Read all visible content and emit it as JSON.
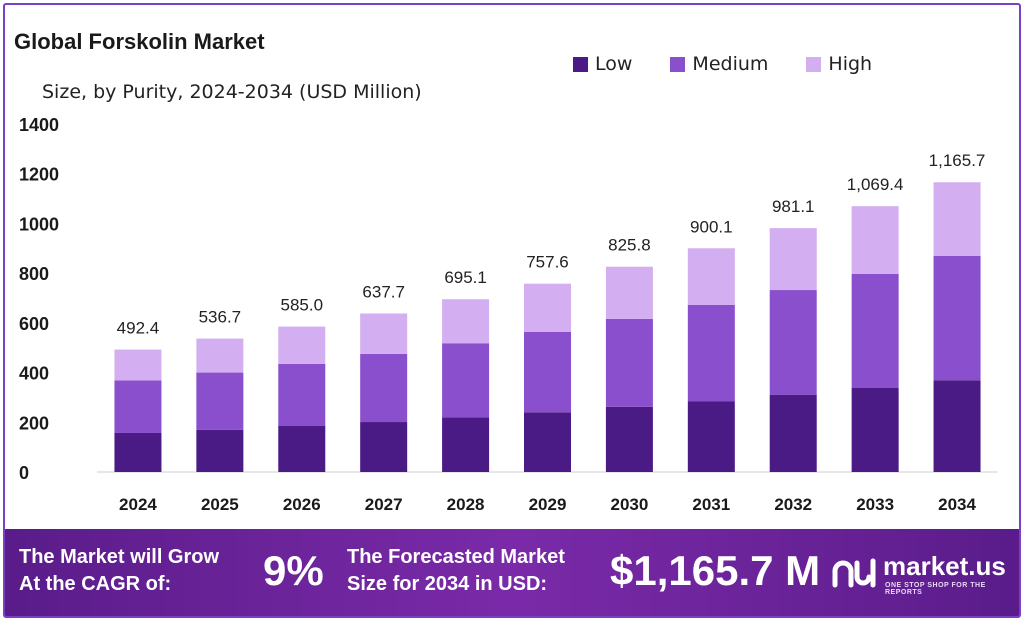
{
  "header": {
    "title": "Global Forskolin Market",
    "subtitle": "Size, by Purity, 2024-2034 (USD Million)"
  },
  "colors": {
    "low": "#4a1a85",
    "medium": "#8a4fcc",
    "high": "#d3aef0",
    "frame": "#7b3fc4",
    "footer": "#6a2499"
  },
  "chart_data": {
    "type": "bar",
    "stacked": true,
    "categories": [
      "2024",
      "2025",
      "2026",
      "2027",
      "2028",
      "2029",
      "2030",
      "2031",
      "2032",
      "2033",
      "2034"
    ],
    "series": [
      {
        "name": "Low",
        "values": [
          157,
          170,
          185,
          201,
          220,
          240,
          262,
          285,
          311,
          338,
          369
        ]
      },
      {
        "name": "Medium",
        "values": [
          211,
          230,
          250,
          274,
          298,
          324,
          354,
          387,
          421,
          459,
          500
        ]
      },
      {
        "name": "High",
        "values": [
          124.4,
          136.7,
          150.0,
          162.7,
          177.1,
          193.6,
          209.8,
          228.1,
          249.1,
          272.4,
          296.7
        ]
      }
    ],
    "totals": [
      "492.4",
      "536.7",
      "585.0",
      "637.7",
      "695.1",
      "757.6",
      "825.8",
      "900.1",
      "981.1",
      "1,069.4",
      "1,165.7"
    ],
    "yticks": [
      "0",
      "200",
      "400",
      "600",
      "800",
      "1000",
      "1200",
      "1400"
    ],
    "ylim": [
      0,
      1400
    ],
    "legend_position": "top-right",
    "grid": false
  },
  "footer": {
    "cagr_line1": "The Market will Grow",
    "cagr_line2": "At the CAGR of:",
    "cagr_value": "9%",
    "forecast_line1": "The Forecasted Market",
    "forecast_line2": "Size for 2034 in USD:",
    "forecast_value": "$1,165.7 M",
    "brand_name": "market.us",
    "brand_tagline": "ONE STOP SHOP FOR THE REPORTS"
  }
}
